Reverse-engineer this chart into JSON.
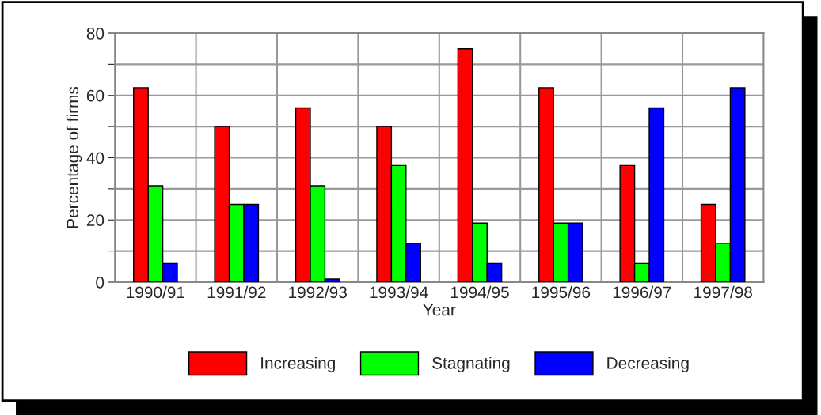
{
  "chart_data": {
    "type": "bar",
    "xlabel": "Year",
    "ylabel": "Percentage of firms",
    "categories": [
      "1990/91",
      "1991/92",
      "1992/93",
      "1993/94",
      "1994/95",
      "1995/96",
      "1996/97",
      "1997/98"
    ],
    "series": [
      {
        "name": "Increasing",
        "color": "#ff0000",
        "values": [
          62.5,
          50,
          56,
          50,
          75,
          62.5,
          37.5,
          25
        ]
      },
      {
        "name": "Stagnating",
        "color": "#00ff00",
        "values": [
          31,
          25,
          31,
          37.5,
          19,
          19,
          6,
          12.5
        ]
      },
      {
        "name": "Decreasing",
        "color": "#0000ff",
        "values": [
          6,
          25,
          1,
          12.5,
          6,
          19,
          56,
          62.5
        ]
      }
    ],
    "ylim": [
      0,
      80
    ],
    "yticks": [
      0,
      {
        "value": 10,
        "label": null
      },
      20,
      {
        "value": 30,
        "label": null
      },
      40,
      {
        "value": 50,
        "label": null
      },
      60,
      {
        "value": 70,
        "label": null
      },
      80
    ],
    "grid": true,
    "legend": "bottom"
  }
}
